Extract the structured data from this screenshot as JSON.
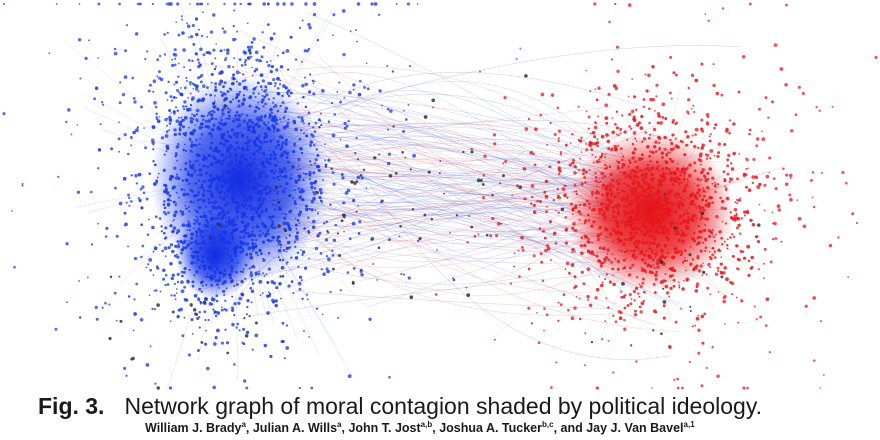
{
  "figure": {
    "label": "Fig. 3.",
    "caption": "Network graph of moral contagion shaded by political ideology.",
    "colors": {
      "liberal_cluster": "#1535e8",
      "conservative_cluster": "#e8161b",
      "bridge_edges_blue": "#5a6fe0",
      "bridge_edges_red": "#e06a6a",
      "neutral_nodes": "#333333"
    }
  },
  "authors": [
    {
      "name": "William J. Brady",
      "affil": "a",
      "sep": ", "
    },
    {
      "name": "Julian A. Wills",
      "affil": "a",
      "sep": ", "
    },
    {
      "name": "John T. Jost",
      "affil": "a,b",
      "sep": ", "
    },
    {
      "name": "Joshua A. Tucker",
      "affil": "b,c",
      "sep": ", and "
    },
    {
      "name": "Jay J. Van Bavel",
      "affil": "a,1",
      "sep": ""
    }
  ]
}
